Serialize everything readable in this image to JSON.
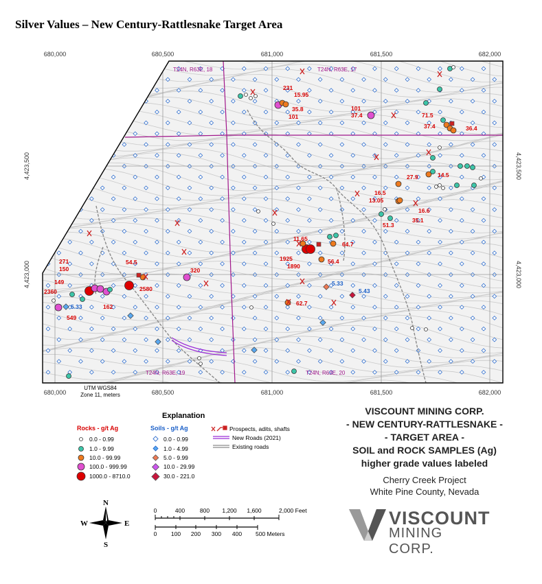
{
  "title": "Silver Values – New Century-Rattlesnake Target Area",
  "map": {
    "easting_labels": [
      "680,000",
      "680,500",
      "681,000",
      "681,500",
      "682,000"
    ],
    "northing_labels": [
      "4,423,500",
      "4,423,000"
    ],
    "townships": [
      "T24N, R63E, 18",
      "T24N, R63E, 17",
      "T24N, R63E, 19",
      "T24N, R63E, 20"
    ],
    "projection": [
      "UTM WGS84",
      "Zone 11, meters"
    ],
    "rock_labels": [
      "231",
      "15.95",
      "35.8",
      "101",
      "101",
      "37.4",
      "71.5",
      "37.4",
      "36.4",
      "27.9",
      "14.5",
      "16.5",
      "13.05",
      "16.6",
      "51.3",
      "35.1",
      "11.65",
      "64.7",
      "1925",
      "1890",
      "56.4",
      "62.7",
      "271",
      "150",
      "54.5",
      "320",
      "149",
      "2360",
      "2580",
      "162",
      "549"
    ],
    "soil_labels": [
      "5.33",
      "5.43",
      "5.33"
    ]
  },
  "legend": {
    "heading": "Explanation",
    "rocks_heading": "Rocks - g/t Ag",
    "rocks": [
      "0.0 - 0.99",
      "1.0 - 9.99",
      "10.0 - 99.99",
      "100.0 - 999.99",
      "1000.0 - 8710.0"
    ],
    "rock_colors": [
      "#ffffff",
      "#3cc5a8",
      "#ee7a1e",
      "#e050d0",
      "#dd0000"
    ],
    "soils_heading": "Soils - g/t Ag",
    "soils": [
      "0.0 - 0.99",
      "1.0 - 4.99",
      "5.0 - 9.99",
      "10.0 - 29.99",
      "30.0 - 221.0"
    ],
    "soil_colors": [
      "#ffffff",
      "#5aa8f0",
      "#ee7a55",
      "#cc55ee",
      "#c8163c"
    ],
    "lines": [
      "Prospects, adits, shafts",
      "New Roads (2021)",
      "Existing roads"
    ]
  },
  "title_block": {
    "lines": [
      "VISCOUNT MINING CORP.",
      "- NEW CENTURY-RATTLESNAKE -",
      "- TARGET AREA -",
      "SOIL and ROCK SAMPLES (Ag)",
      "higher grade values labeled"
    ],
    "project": "Cherry Creek Project",
    "county": "White Pine County, Nevada"
  },
  "compass": [
    "N",
    "S",
    "E",
    "W"
  ],
  "scale_feet": [
    "0",
    "400",
    "800",
    "1,200",
    "1,600",
    "2,000 Feet"
  ],
  "scale_meters": [
    "0",
    "100",
    "200",
    "300",
    "400",
    "500 Meters"
  ],
  "logo": {
    "name": "VISCOUNT",
    "sub": "MINING CORP."
  }
}
